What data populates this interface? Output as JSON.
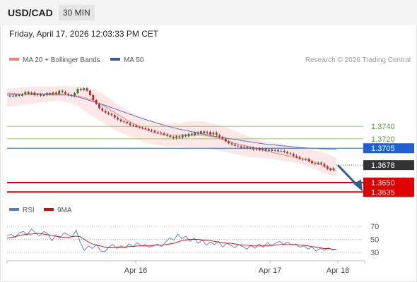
{
  "header": {
    "symbol": "USD/CAD",
    "timeframe": "30 MIN",
    "datetime": "Friday, April 17, 2026 12:03:33 PM CET"
  },
  "legend": {
    "ma20_label": "MA 20 + Bollinger Bands",
    "ma50_label": "MA 50",
    "credit": "Research © 2026 Trading Central",
    "rsi_label": "RSI",
    "rsi_ma_label": "9MA"
  },
  "colors": {
    "ma20": "#f08080",
    "bollinger_fill": "#fde3e3",
    "ma50": "#5577bb",
    "candle_up": "#2e7d32",
    "candle_down": "#c62828",
    "green_level": "#9ccc65",
    "blue_level": "#1e5fd6",
    "red_level": "#e00000",
    "current_price_tag": "#333333",
    "arrow": "#2f5d9a",
    "rsi": "#5577cc",
    "rsi_ma": "#e00000"
  },
  "chart_data": [
    {
      "type": "line",
      "name": "USD/CAD 30 MIN price chart",
      "x_ticks": [
        "Apr 16",
        "Apr 17",
        "Apr 18"
      ],
      "ylim": [
        1.3615,
        1.3835
      ],
      "levels": [
        {
          "label": "1.3740",
          "value": 1.374,
          "style": "green"
        },
        {
          "label": "1.3720",
          "value": 1.372,
          "style": "green"
        },
        {
          "label": "1.3705",
          "value": 1.3705,
          "style": "blue"
        },
        {
          "label": "1.3678",
          "value": 1.3678,
          "style": "current"
        },
        {
          "label": "1.3650",
          "value": 1.365,
          "style": "red"
        },
        {
          "label": "1.3635",
          "value": 1.3635,
          "style": "red"
        }
      ],
      "series": [
        {
          "name": "MA 20",
          "values": [
            1.3793,
            1.3792,
            1.3791,
            1.3791,
            1.379,
            1.379,
            1.3788,
            1.3782,
            1.3772,
            1.376,
            1.3748,
            1.3738,
            1.373,
            1.3726,
            1.3726,
            1.3726,
            1.3726,
            1.3723,
            1.3717,
            1.3711,
            1.3707,
            1.3702,
            1.3697,
            1.3693,
            1.3689,
            1.3684,
            1.3676,
            1.3669
          ]
        },
        {
          "name": "MA 50",
          "values": [
            1.379,
            1.3791,
            1.3792,
            1.3792,
            1.3792,
            1.379,
            1.3786,
            1.378,
            1.3774,
            1.3767,
            1.376,
            1.3753,
            1.3747,
            1.3741,
            1.3736,
            1.3732,
            1.3728,
            1.3724,
            1.3721,
            1.3718,
            1.3715,
            1.3712,
            1.371,
            1.3708,
            1.3706,
            1.3705,
            1.3704,
            1.3703
          ]
        },
        {
          "name": "Bollinger Upper",
          "values": [
            1.38,
            1.3802,
            1.3804,
            1.3804,
            1.3804,
            1.3804,
            1.3804,
            1.38,
            1.379,
            1.3776,
            1.3764,
            1.3755,
            1.3748,
            1.3745,
            1.3745,
            1.3748,
            1.3748,
            1.3744,
            1.3738,
            1.373,
            1.3723,
            1.3717,
            1.3713,
            1.3711,
            1.3707,
            1.3703,
            1.3697,
            1.369
          ]
        },
        {
          "name": "Bollinger Lower",
          "values": [
            1.3771,
            1.3774,
            1.3776,
            1.3779,
            1.3781,
            1.3779,
            1.377,
            1.3756,
            1.3744,
            1.3733,
            1.3724,
            1.3716,
            1.3711,
            1.3708,
            1.3708,
            1.3706,
            1.3706,
            1.3703,
            1.3698,
            1.3694,
            1.3691,
            1.3689,
            1.3687,
            1.3684,
            1.368,
            1.3674,
            1.3665,
            1.366
          ]
        }
      ],
      "candles": [
        [
          1.3788,
          1.3789
        ],
        [
          1.3789,
          1.3788
        ],
        [
          1.3788,
          1.379
        ],
        [
          1.379,
          1.3789
        ],
        [
          1.3789,
          1.3791
        ],
        [
          1.3791,
          1.3795
        ],
        [
          1.3795,
          1.3792
        ],
        [
          1.3792,
          1.3794
        ],
        [
          1.3794,
          1.379
        ],
        [
          1.379,
          1.3791
        ],
        [
          1.3791,
          1.3789
        ],
        [
          1.3789,
          1.379
        ],
        [
          1.379,
          1.3793
        ],
        [
          1.3793,
          1.3791
        ],
        [
          1.3791,
          1.3794
        ],
        [
          1.3794,
          1.3792
        ],
        [
          1.3792,
          1.3797
        ],
        [
          1.3797,
          1.3795
        ],
        [
          1.3795,
          1.3792
        ],
        [
          1.3792,
          1.379
        ],
        [
          1.379,
          1.3789
        ],
        [
          1.3789,
          1.3793
        ],
        [
          1.3793,
          1.38
        ],
        [
          1.38,
          1.3798
        ],
        [
          1.3798,
          1.3801
        ],
        [
          1.3801,
          1.3797
        ],
        [
          1.3797,
          1.379
        ],
        [
          1.379,
          1.3782
        ],
        [
          1.3782,
          1.3776
        ],
        [
          1.3776,
          1.3769
        ],
        [
          1.3769,
          1.3765
        ],
        [
          1.3765,
          1.3762
        ],
        [
          1.3762,
          1.376
        ],
        [
          1.376,
          1.3758
        ],
        [
          1.3758,
          1.3754
        ],
        [
          1.3754,
          1.3751
        ],
        [
          1.3751,
          1.3748
        ],
        [
          1.3748,
          1.3747
        ],
        [
          1.3747,
          1.3745
        ],
        [
          1.3745,
          1.3742
        ],
        [
          1.3742,
          1.3741
        ],
        [
          1.3741,
          1.3739
        ],
        [
          1.3739,
          1.3738
        ],
        [
          1.3738,
          1.3737
        ],
        [
          1.3737,
          1.3736
        ],
        [
          1.3736,
          1.3734
        ],
        [
          1.3734,
          1.3733
        ],
        [
          1.3733,
          1.3731
        ],
        [
          1.3731,
          1.373
        ],
        [
          1.373,
          1.3729
        ],
        [
          1.3729,
          1.3727
        ],
        [
          1.3727,
          1.3725
        ],
        [
          1.3725,
          1.3723
        ],
        [
          1.3723,
          1.3721
        ],
        [
          1.3721,
          1.3724
        ],
        [
          1.3724,
          1.3722
        ],
        [
          1.3722,
          1.3726
        ],
        [
          1.3726,
          1.3724
        ],
        [
          1.3724,
          1.3728
        ],
        [
          1.3728,
          1.3726
        ],
        [
          1.3726,
          1.373
        ],
        [
          1.373,
          1.3728
        ],
        [
          1.3728,
          1.3732
        ],
        [
          1.3732,
          1.3729
        ],
        [
          1.3729,
          1.3731
        ],
        [
          1.3731,
          1.3727
        ],
        [
          1.3727,
          1.373
        ],
        [
          1.373,
          1.3726
        ],
        [
          1.3726,
          1.3723
        ],
        [
          1.3723,
          1.372
        ],
        [
          1.372,
          1.3716
        ],
        [
          1.3716,
          1.3713
        ],
        [
          1.3713,
          1.3711
        ],
        [
          1.3711,
          1.3709
        ],
        [
          1.3709,
          1.3708
        ],
        [
          1.3708,
          1.3706
        ],
        [
          1.3706,
          1.3707
        ],
        [
          1.3707,
          1.3705
        ],
        [
          1.3705,
          1.3706
        ],
        [
          1.3706,
          1.3703
        ],
        [
          1.3703,
          1.3705
        ],
        [
          1.3705,
          1.3702
        ],
        [
          1.3702,
          1.3704
        ],
        [
          1.3704,
          1.3701
        ],
        [
          1.3701,
          1.3703
        ],
        [
          1.3703,
          1.3701
        ],
        [
          1.3701,
          1.3702
        ],
        [
          1.3702,
          1.37
        ],
        [
          1.37,
          1.3701
        ],
        [
          1.3701,
          1.3699
        ],
        [
          1.3699,
          1.3697
        ],
        [
          1.3697,
          1.3696
        ],
        [
          1.3696,
          1.3693
        ],
        [
          1.3693,
          1.3691
        ],
        [
          1.3691,
          1.3688
        ],
        [
          1.3688,
          1.3687
        ],
        [
          1.3687,
          1.3688
        ],
        [
          1.3688,
          1.3684
        ],
        [
          1.3684,
          1.3681
        ],
        [
          1.3681,
          1.368
        ],
        [
          1.368,
          1.3682
        ],
        [
          1.3682,
          1.368
        ],
        [
          1.368,
          1.3676
        ],
        [
          1.3676,
          1.3672
        ],
        [
          1.3672,
          1.367
        ],
        [
          1.367,
          1.3673
        ]
      ]
    },
    {
      "type": "line",
      "name": "RSI panel",
      "y_ticks": [
        "70",
        "50",
        "30"
      ],
      "ylim": [
        20,
        80
      ],
      "series": [
        {
          "name": "RSI",
          "values": [
            55,
            58,
            53,
            60,
            62,
            57,
            66,
            60,
            55,
            62,
            59,
            48,
            56,
            52,
            60,
            57,
            54,
            64,
            45,
            33,
            40,
            36,
            42,
            32,
            31,
            38,
            42,
            36,
            40,
            37,
            43,
            39,
            45,
            40,
            42,
            38,
            40,
            43,
            39,
            46,
            52,
            49,
            58,
            51,
            55,
            47,
            52,
            44,
            49,
            41,
            46,
            42,
            47,
            38,
            44,
            41,
            37,
            42,
            39,
            35,
            41,
            36,
            43,
            38,
            45,
            40,
            44,
            47,
            42,
            46,
            41,
            43,
            38,
            40,
            35,
            38,
            32,
            36,
            33,
            37,
            34,
            35
          ]
        },
        {
          "name": "9MA",
          "values": [
            52,
            53,
            54,
            56,
            57,
            58,
            58,
            59,
            59,
            58,
            57,
            56,
            55,
            54,
            53,
            53,
            54,
            55,
            54,
            50,
            46,
            43,
            41,
            40,
            38,
            37,
            37,
            38,
            38,
            38,
            39,
            39,
            40,
            40,
            40,
            40,
            41,
            41,
            41,
            42,
            43,
            44,
            46,
            48,
            49,
            50,
            50,
            50,
            49,
            49,
            48,
            47,
            46,
            45,
            44,
            44,
            43,
            42,
            41,
            41,
            40,
            40,
            40,
            40,
            40,
            41,
            41,
            42,
            42,
            42,
            42,
            42,
            41,
            41,
            40,
            39,
            38,
            37,
            36,
            36,
            35,
            35
          ]
        }
      ]
    }
  ]
}
